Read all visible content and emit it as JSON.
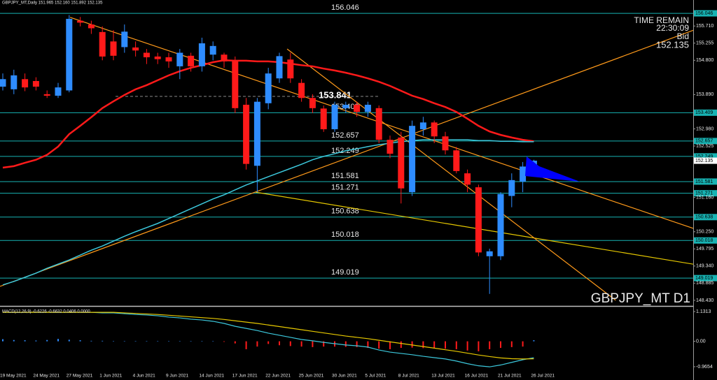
{
  "header": "GBPJPY_MT,Daily  151.965 152.160 151.892 152.135",
  "chart_data": [
    {
      "type": "candlestick",
      "symbol_label": "GBPJPY_MT D1",
      "time_remain_label": "TIME REMAIN",
      "time_remain": "22:30:09",
      "bid_label": "Bid",
      "bid": 152.135,
      "categories": [
        "19 May 2021",
        null,
        null,
        "24 May 2021",
        null,
        null,
        "27 May 2021",
        null,
        null,
        "1 Jun 2021",
        null,
        null,
        "4 Jun 2021",
        null,
        null,
        "9 Jun 2021",
        null,
        null,
        "14 Jun 2021",
        null,
        null,
        "17 Jun 2021",
        null,
        null,
        "22 Jun 2021",
        null,
        null,
        "25 Jun 2021",
        null,
        null,
        "30 Jun 2021",
        null,
        null,
        "5 Jul 2021",
        null,
        null,
        "8 Jul 2021",
        null,
        null,
        "13 Jul 2021",
        null,
        null,
        "16 Jul 2021",
        null,
        null,
        "21 Jul 2021",
        null,
        null,
        "26 Jul 2021"
      ],
      "open": [
        154.1,
        154.03,
        154.3,
        154.25,
        153.9,
        153.86,
        154.0,
        155.85,
        155.75,
        155.55,
        155.3,
        155.15,
        155.14,
        155.0,
        154.9,
        154.88,
        154.64,
        154.92,
        154.64,
        154.95,
        154.95,
        154.77,
        153.62,
        152.0,
        153.66,
        154.32,
        154.82,
        154.2,
        153.8,
        153.52,
        152.97,
        153.53,
        153.62,
        153.43,
        153.53,
        152.69,
        152.75,
        151.3,
        152.97,
        153.15,
        152.78,
        152.41,
        151.8,
        151.43,
        149.6,
        149.6,
        151.2,
        151.58,
        151.965
      ],
      "high": [
        154.45,
        154.55,
        154.45,
        154.35,
        154.0,
        154.2,
        156.0,
        155.95,
        155.85,
        155.7,
        155.6,
        155.75,
        155.3,
        155.1,
        155.0,
        155.0,
        155.1,
        155.0,
        155.4,
        155.3,
        155.0,
        154.9,
        153.8,
        153.8,
        154.6,
        155.0,
        155.0,
        154.3,
        153.9,
        153.6,
        153.7,
        153.7,
        153.7,
        153.7,
        153.6,
        152.8,
        152.9,
        153.2,
        153.3,
        153.2,
        152.9,
        152.5,
        151.9,
        151.5,
        149.8,
        151.3,
        151.8,
        152.1,
        152.16
      ],
      "low": [
        154.0,
        153.9,
        153.98,
        154.0,
        153.8,
        153.8,
        153.95,
        155.7,
        155.5,
        154.8,
        154.8,
        155.0,
        154.9,
        154.7,
        154.7,
        154.6,
        154.3,
        154.5,
        154.5,
        154.8,
        154.6,
        153.4,
        151.9,
        151.3,
        153.5,
        154.2,
        154.2,
        153.7,
        153.4,
        152.9,
        152.9,
        153.4,
        153.3,
        153.3,
        152.6,
        152.2,
        151.0,
        151.2,
        152.8,
        152.6,
        152.3,
        151.8,
        151.3,
        149.6,
        148.6,
        149.5,
        150.9,
        151.3,
        151.892
      ],
      "close": [
        154.3,
        154.4,
        154.08,
        154.1,
        153.86,
        154.08,
        155.9,
        155.8,
        155.65,
        154.9,
        154.92,
        155.56,
        155.06,
        154.88,
        154.83,
        154.77,
        155.0,
        154.64,
        155.25,
        155.18,
        154.77,
        153.53,
        152.05,
        153.7,
        154.45,
        154.91,
        154.32,
        153.8,
        153.53,
        152.97,
        153.62,
        153.62,
        153.43,
        153.62,
        152.69,
        152.32,
        151.4,
        153.06,
        153.15,
        152.78,
        152.41,
        151.86,
        151.5,
        149.7,
        149.73,
        151.25,
        151.62,
        151.98,
        152.135
      ],
      "up_color": "#2e8cff",
      "down_color": "#ff1a1a",
      "overlays": [
        {
          "color": "#ff1a1a",
          "line_width": 2.5,
          "values": [
            151.95,
            151.99,
            152.08,
            152.16,
            152.29,
            152.51,
            152.84,
            153.06,
            153.29,
            153.53,
            153.71,
            153.88,
            154.03,
            154.14,
            154.27,
            154.4,
            154.51,
            154.6,
            154.67,
            154.75,
            154.8,
            154.79,
            154.79,
            154.77,
            154.77,
            154.75,
            154.71,
            154.67,
            154.64,
            154.58,
            154.53,
            154.47,
            154.4,
            154.32,
            154.23,
            154.12,
            153.99,
            153.86,
            153.77,
            153.66,
            153.56,
            153.43,
            153.25,
            153.06,
            152.91,
            152.82,
            152.75,
            152.69,
            152.65
          ]
        },
        {
          "color": "#3cc8dc",
          "line_width": 1.5,
          "values": [
            148.84,
            148.93,
            149.04,
            149.15,
            149.28,
            149.39,
            149.5,
            149.63,
            149.76,
            149.87,
            150.0,
            150.13,
            150.25,
            150.36,
            150.47,
            150.6,
            150.73,
            150.86,
            150.99,
            151.12,
            151.23,
            151.36,
            151.49,
            151.6,
            151.71,
            151.82,
            151.93,
            152.04,
            152.16,
            152.25,
            152.32,
            152.4,
            152.45,
            152.51,
            152.56,
            152.6,
            152.64,
            152.67,
            152.69,
            152.69,
            152.69,
            152.69,
            152.69,
            152.67,
            152.67,
            152.65,
            152.65,
            152.64,
            152.64
          ]
        }
      ],
      "trendlines": [
        {
          "color": "#ff9a1a",
          "x": [
            -0.25,
            63.0
          ],
          "y": [
            148.8,
            155.66
          ]
        },
        {
          "color": "#ff9a1a",
          "x": [
            6.08,
            63.0
          ],
          "y": [
            155.94,
            150.28
          ]
        },
        {
          "color": "#e6c800",
          "x": [
            22.85,
            63.0
          ],
          "y": [
            151.3,
            149.36
          ]
        },
        {
          "color": "#ff9a1a",
          "x": [
            25.7,
            55.4
          ],
          "y": [
            155.1,
            148.43
          ]
        }
      ],
      "levels": [
        156.046,
        153.409,
        152.657,
        152.249,
        151.581,
        151.271,
        150.638,
        150.018,
        149.019
      ],
      "level_color": "#17b3b3",
      "pivot": 153.841,
      "ylim": [
        148.28,
        156.4
      ],
      "yticks": [
        {
          "value": 155.71,
          "label": "155.710"
        },
        155.255,
        {
          "value": 154.8,
          "label": "154.800"
        },
        {
          "value": 153.89,
          "label": "153.890"
        },
        {
          "value": 152.98,
          "label": "152.980"
        },
        152.525,
        {
          "value": 151.16,
          "label": "151.160"
        },
        {
          "value": 150.25,
          "label": "150.250"
        },
        149.795,
        {
          "value": 149.34,
          "label": "149.340"
        },
        148.885,
        {
          "value": 148.43,
          "label": "148.430"
        }
      ]
    },
    {
      "type": "macd",
      "title": "MACD(12,26,9) -0.6226 -0.6632 0.0406 0.0000",
      "ylim": [
        -1.47,
        1.29
      ],
      "yticks": [
        1.1313,
        {
          "value": 0,
          "label": "0.00"
        },
        -0.9654
      ],
      "histogram": [
        0.08,
        0.05,
        0.04,
        0.03,
        0.05,
        0.09,
        0.06,
        0.04,
        0.02,
        0.02,
        0.01,
        0.01,
        0.01,
        0.01,
        0.01,
        0.01,
        0.01,
        0.01,
        0.01,
        0.01,
        -0.02,
        -0.08,
        -0.3,
        -0.2,
        -0.1,
        -0.15,
        -0.18,
        -0.2,
        -0.22,
        -0.2,
        -0.2,
        -0.21,
        -0.22,
        -0.25,
        -0.28,
        -0.3,
        -0.25,
        -0.24,
        -0.26,
        -0.27,
        -0.28,
        -0.3,
        -0.35,
        -0.38,
        -0.3,
        -0.25,
        -0.22,
        -0.2,
        0.0406
      ],
      "up_color": "#2e8cff",
      "down_color": "#ff1a1a",
      "lines": [
        {
          "color": "#3cc8dc",
          "values": [
            1.1,
            1.1,
            1.1,
            1.1,
            1.1,
            1.1,
            1.1,
            1.1,
            1.1,
            1.08,
            1.08,
            1.05,
            1.02,
            1.0,
            0.97,
            0.92,
            0.89,
            0.84,
            0.81,
            0.76,
            0.68,
            0.57,
            0.49,
            0.41,
            0.31,
            0.23,
            0.15,
            0.07,
            0.02,
            -0.04,
            -0.09,
            -0.14,
            -0.17,
            -0.22,
            -0.33,
            -0.41,
            -0.46,
            -0.51,
            -0.57,
            -0.62,
            -0.67,
            -0.75,
            -0.85,
            -0.93,
            -0.97,
            -0.9,
            -0.8,
            -0.7,
            -0.6226
          ]
        },
        {
          "color": "#e6c800",
          "values": [
            1.1,
            1.1,
            1.1,
            1.1,
            1.1,
            1.1,
            1.1,
            1.1,
            1.1,
            1.1,
            1.1,
            1.08,
            1.06,
            1.04,
            1.02,
            0.99,
            0.96,
            0.93,
            0.9,
            0.87,
            0.83,
            0.78,
            0.73,
            0.68,
            0.62,
            0.56,
            0.5,
            0.44,
            0.38,
            0.32,
            0.26,
            0.2,
            0.15,
            0.1,
            0.04,
            -0.02,
            -0.08,
            -0.14,
            -0.2,
            -0.26,
            -0.32,
            -0.38,
            -0.45,
            -0.52,
            -0.58,
            -0.63,
            -0.66,
            -0.67,
            -0.6632
          ]
        }
      ]
    }
  ]
}
